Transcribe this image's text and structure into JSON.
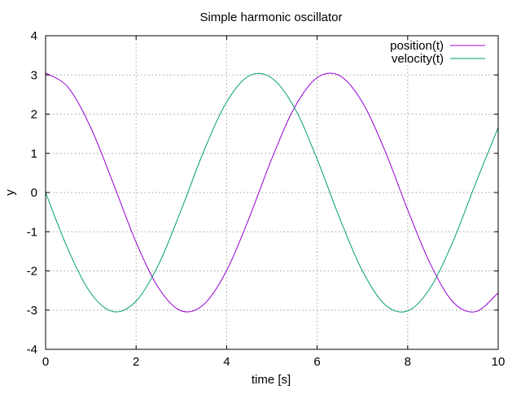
{
  "chart_data": {
    "type": "line",
    "title": "Simple harmonic oscillator",
    "xlabel": "time [s]",
    "ylabel": "y",
    "xlim": [
      0,
      10
    ],
    "ylim": [
      -4,
      4
    ],
    "x_ticks": [
      "0",
      "2",
      "4",
      "6",
      "8",
      "10"
    ],
    "y_ticks": [
      "4",
      "3",
      "2",
      "1",
      "0",
      "-1",
      "-2",
      "-3",
      "-4"
    ],
    "grid": true,
    "legend_position": "top-right",
    "x": [
      0,
      0.5,
      1,
      1.5,
      2,
      2.5,
      3,
      3.5,
      4,
      4.5,
      5,
      5.5,
      6,
      6.5,
      7,
      7.5,
      8,
      8.5,
      9,
      9.5,
      10
    ],
    "series": [
      {
        "name": "position(t)",
        "color": "#9400d3",
        "values": [
          3.05,
          2.68,
          1.65,
          0.22,
          -1.27,
          -2.44,
          -3.02,
          -2.85,
          -1.99,
          -0.64,
          0.87,
          2.17,
          2.93,
          2.98,
          2.3,
          1.06,
          -0.44,
          -1.82,
          -2.79,
          -3.04,
          -2.56
        ]
      },
      {
        "name": "velocity(t)",
        "color": "#009e73",
        "values": [
          0,
          -1.46,
          -2.57,
          -3.04,
          -2.77,
          -1.83,
          -0.43,
          1.07,
          2.31,
          2.98,
          2.92,
          2.16,
          0.85,
          -0.66,
          -2.0,
          -2.86,
          -3.02,
          -2.43,
          -1.25,
          0.23,
          1.66
        ]
      }
    ]
  }
}
